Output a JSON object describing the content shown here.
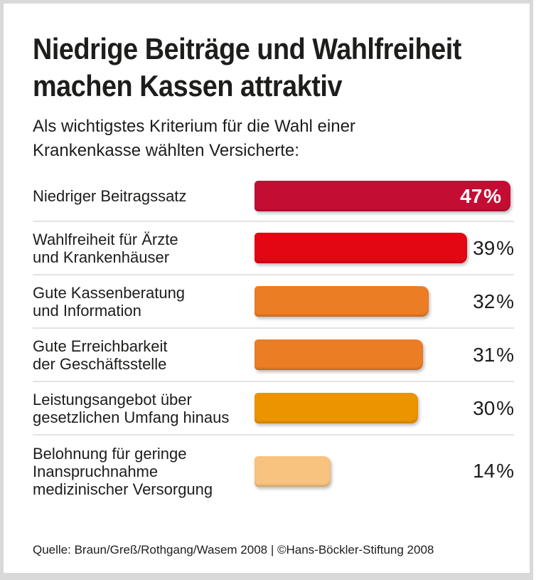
{
  "colors": {
    "frame": "#d9d9d9",
    "separator": "#e3e3e3",
    "text": "#1d1d1b",
    "value_inside_text": "#ffffff",
    "bar_dark_red": "#c40d33",
    "bar_red": "#e30613",
    "bar_orange": "#eb7d25",
    "bar_amber": "#ec9300",
    "bar_peach": "#f8c37f"
  },
  "chart_data": {
    "type": "bar",
    "orientation": "horizontal",
    "title": "Niedrige Beiträge und Wahlfreiheit machen Kassen attraktiv",
    "title_lines": [
      "Niedrige Beiträge und Wahlfreiheit",
      "machen Kassen attraktiv"
    ],
    "subtitle": "Als wichtigstes Kriterium für die Wahl einer Krankenkasse wählten Versicherte:",
    "subtitle_lines": [
      "Als wichtigstes Kriterium für die Wahl einer",
      "Krankenkasse wählten Versicherte:"
    ],
    "value_unit": "%",
    "xmax": 47,
    "grid": false,
    "legend": false,
    "categories": [
      "Niedriger Beitragssatz",
      "Wahlfreiheit für Ärzte und Krankenhäuser",
      "Gute Kassenberatung und Information",
      "Gute Erreichbarkeit der Geschäftsstelle",
      "Leistungsangebot über gesetzlichen Umfang hinaus",
      "Belohnung für geringe Inanspruchnahme medizinischer Versorgung"
    ],
    "values": [
      47,
      39,
      32,
      31,
      30,
      14
    ],
    "rows": [
      {
        "label_lines": [
          "Niedriger Beitragssatz"
        ],
        "value": 47,
        "value_label": "47 %",
        "color": "#c40d33",
        "value_inside": true
      },
      {
        "label_lines": [
          "Wahlfreiheit für Ärzte",
          "und Krankenhäuser"
        ],
        "value": 39,
        "value_label": "39 %",
        "color": "#e30613",
        "value_inside": false
      },
      {
        "label_lines": [
          "Gute Kassenberatung",
          "und Information"
        ],
        "value": 32,
        "value_label": "32 %",
        "color": "#eb7d25",
        "value_inside": false
      },
      {
        "label_lines": [
          "Gute Erreichbarkeit",
          "der Geschäftsstelle"
        ],
        "value": 31,
        "value_label": "31 %",
        "color": "#eb7d25",
        "value_inside": false
      },
      {
        "label_lines": [
          "Leistungsangebot über",
          "gesetzlichen Umfang hinaus"
        ],
        "value": 30,
        "value_label": "30 %",
        "color": "#ec9300",
        "value_inside": false
      },
      {
        "label_lines": [
          "Belohnung für geringe",
          "Inanspruchnahme",
          "medizinischer Versorgung"
        ],
        "value": 14,
        "value_label": "14 %",
        "color": "#f8c37f",
        "value_inside": false
      }
    ],
    "source": "Quelle: Braun/Greß/Rothgang/Wasem 2008 | ©Hans-Böckler-Stiftung 2008"
  }
}
